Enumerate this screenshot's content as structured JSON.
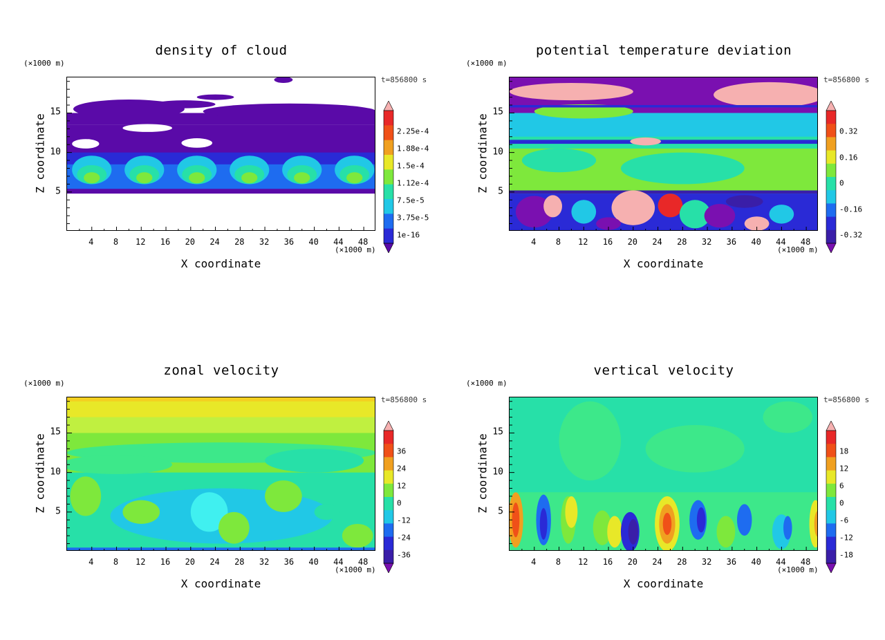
{
  "figure": {
    "panels": [
      {
        "id": "cloud",
        "title": "density of cloud",
        "y_unit": "(×1000 m)",
        "x_unit": "(×1000 m)",
        "time_label": "t=856800 s",
        "xlabel": "X coordinate",
        "ylabel": "Z coordinate",
        "x_ticks": [
          "4",
          "8",
          "12",
          "16",
          "20",
          "24",
          "28",
          "32",
          "36",
          "40",
          "44",
          "48"
        ],
        "y_ticks": [
          "5",
          "10",
          "15"
        ],
        "colorbar_labels": [
          "2.25e-4",
          "1.88e-4",
          "1.5e-4",
          "1.12e-4",
          "7.5e-5",
          "3.75e-5",
          "1e-16"
        ],
        "colors": [
          "#5a0aa8",
          "#2a2ad6",
          "#1e6cf0",
          "#21c8e6",
          "#27e0a8",
          "#7ee83c",
          "#e8e828",
          "#f0a020",
          "#f05018",
          "#e82828",
          "#f6b0b0"
        ]
      },
      {
        "id": "theta",
        "title": "potential temperature deviation",
        "y_unit": "(×1000 m)",
        "x_unit": "(×1000 m)",
        "time_label": "t=856800 s",
        "xlabel": "X coordinate",
        "ylabel": "Z coordinate",
        "x_ticks": [
          "4",
          "8",
          "12",
          "16",
          "20",
          "24",
          "28",
          "32",
          "36",
          "40",
          "44",
          "48"
        ],
        "y_ticks": [
          "5",
          "10",
          "15"
        ],
        "colorbar_labels": [
          "0.32",
          "0.16",
          "0",
          "-0.16",
          "-0.32"
        ],
        "colors": [
          "#7a10b0",
          "#3a1ea8",
          "#2a2ad6",
          "#1e6cf0",
          "#21c8e6",
          "#27e0a8",
          "#7ee83c",
          "#e8e828",
          "#f0a020",
          "#f05018",
          "#e82828",
          "#f6b0b0"
        ]
      },
      {
        "id": "u",
        "title": "zonal velocity",
        "y_unit": "(×1000 m)",
        "x_unit": "(×1000 m)",
        "time_label": "t=856800 s",
        "xlabel": "X coordinate",
        "ylabel": "Z coordinate",
        "x_ticks": [
          "4",
          "8",
          "12",
          "16",
          "20",
          "24",
          "28",
          "32",
          "36",
          "40",
          "44",
          "48"
        ],
        "y_ticks": [
          "5",
          "10",
          "15"
        ],
        "colorbar_labels": [
          "36",
          "24",
          "12",
          "0",
          "-12",
          "-24",
          "-36"
        ],
        "colors": [
          "#7a10b0",
          "#3a1ea8",
          "#2a2ad6",
          "#1e6cf0",
          "#21c8e6",
          "#27e0a8",
          "#7ee83c",
          "#e8e828",
          "#f0a020",
          "#f05018",
          "#e82828",
          "#f6b0b0"
        ]
      },
      {
        "id": "w",
        "title": "vertical velocity",
        "y_unit": "(×1000 m)",
        "x_unit": "(×1000 m)",
        "time_label": "t=856800 s",
        "xlabel": "X coordinate",
        "ylabel": "Z coordinate",
        "x_ticks": [
          "4",
          "8",
          "12",
          "16",
          "20",
          "24",
          "28",
          "32",
          "36",
          "40",
          "44",
          "48"
        ],
        "y_ticks": [
          "5",
          "10",
          "15"
        ],
        "colorbar_labels": [
          "18",
          "12",
          "6",
          "0",
          "-6",
          "-12",
          "-18"
        ],
        "colors": [
          "#7a10b0",
          "#3a1ea8",
          "#2a2ad6",
          "#1e6cf0",
          "#21c8e6",
          "#27e0a8",
          "#7ee83c",
          "#e8e828",
          "#f0a020",
          "#f05018",
          "#e82828",
          "#f6b0b0"
        ]
      }
    ]
  },
  "chart_data": [
    {
      "type": "heatmap",
      "title": "density of cloud",
      "xlabel": "X coordinate",
      "ylabel": "Z coordinate",
      "xlim": [
        0,
        50
      ],
      "ylim": [
        0,
        19.5
      ],
      "time": "t=856800 s",
      "levels": [
        "1e-16",
        "3.75e-5",
        "7.5e-5",
        "1.12e-4",
        "1.5e-4",
        "1.88e-4",
        "2.25e-4"
      ]
    },
    {
      "type": "heatmap",
      "title": "potential temperature deviation",
      "xlabel": "X coordinate",
      "ylabel": "Z coordinate",
      "xlim": [
        0,
        50
      ],
      "ylim": [
        0,
        19.5
      ],
      "time": "t=856800 s",
      "levels": [
        -0.32,
        -0.16,
        0,
        0.16,
        0.32
      ]
    },
    {
      "type": "heatmap",
      "title": "zonal velocity",
      "xlabel": "X coordinate",
      "ylabel": "Z coordinate",
      "xlim": [
        0,
        50
      ],
      "ylim": [
        0,
        19.5
      ],
      "time": "t=856800 s",
      "levels": [
        -36,
        -24,
        -12,
        0,
        12,
        24,
        36
      ]
    },
    {
      "type": "heatmap",
      "title": "vertical velocity",
      "xlabel": "X coordinate",
      "ylabel": "Z coordinate",
      "xlim": [
        0,
        50
      ],
      "ylim": [
        0,
        19.5
      ],
      "time": "t=856800 s",
      "levels": [
        -18,
        -12,
        -6,
        0,
        6,
        12,
        18
      ]
    }
  ]
}
